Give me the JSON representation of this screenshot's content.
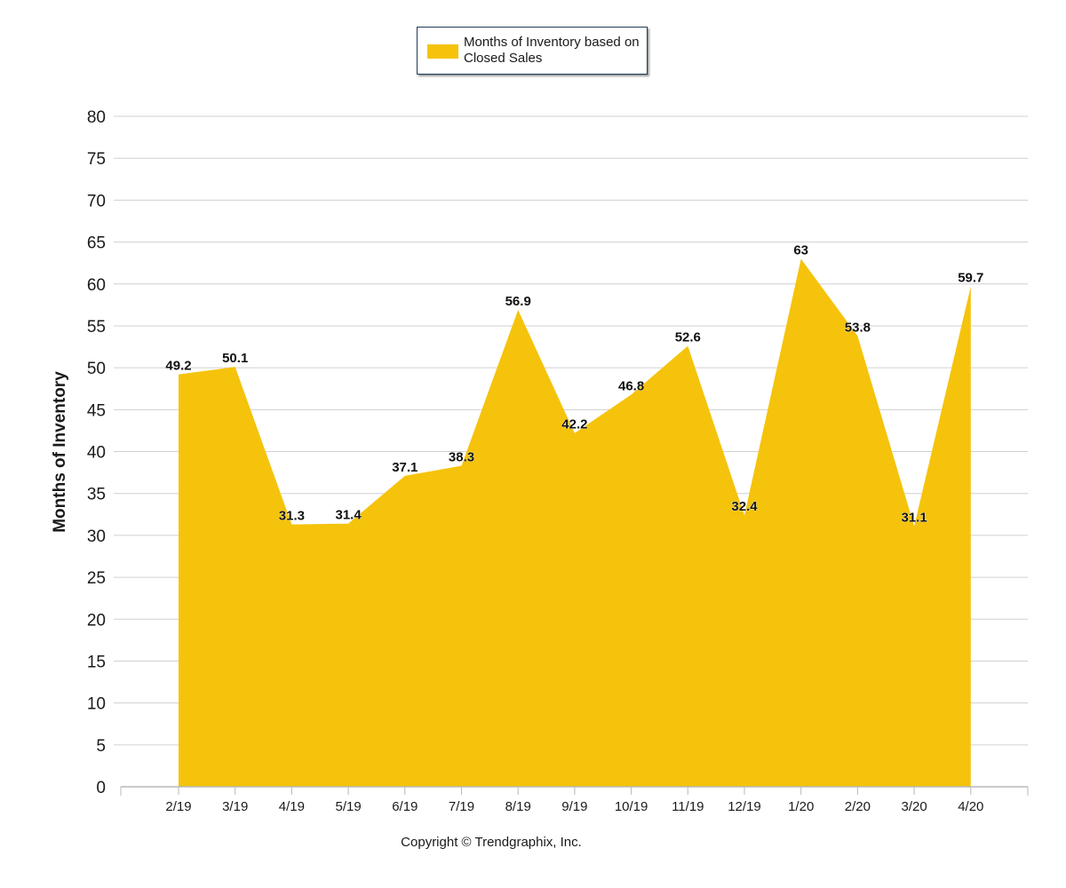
{
  "chart_data": {
    "type": "area",
    "categories": [
      "2/19",
      "3/19",
      "4/19",
      "5/19",
      "6/19",
      "7/19",
      "8/19",
      "9/19",
      "10/19",
      "11/19",
      "12/19",
      "1/20",
      "2/20",
      "3/20",
      "4/20"
    ],
    "series": [
      {
        "name": "Months of Inventory based on Closed Sales",
        "values": [
          49.2,
          50.1,
          31.3,
          31.4,
          37.1,
          38.3,
          56.9,
          42.2,
          46.8,
          52.6,
          32.4,
          63,
          53.8,
          31.1,
          59.7
        ],
        "data_labels": [
          "49.2",
          "50.1",
          "31.3",
          "31.4",
          "37.1",
          "38.3",
          "56.9",
          "42.2",
          "46.8",
          "52.6",
          "32.4",
          "63",
          "53.8",
          "31.1",
          "59.7"
        ],
        "color": "#f5c30b"
      }
    ],
    "ylabel": "Months of Inventory",
    "xlabel": "",
    "ylim": [
      0,
      80
    ],
    "yticks": [
      0,
      5,
      10,
      15,
      20,
      25,
      30,
      35,
      40,
      45,
      50,
      55,
      60,
      65,
      70,
      75,
      80
    ],
    "grid": true,
    "legend_position": "top-center"
  },
  "footer": {
    "copyright": "Copyright © Trendgraphix, Inc."
  },
  "colors": {
    "area": "#f5c30b",
    "grid": "#d0d0d0",
    "axis": "#b8b8b8",
    "text": "#1a1a1a"
  }
}
